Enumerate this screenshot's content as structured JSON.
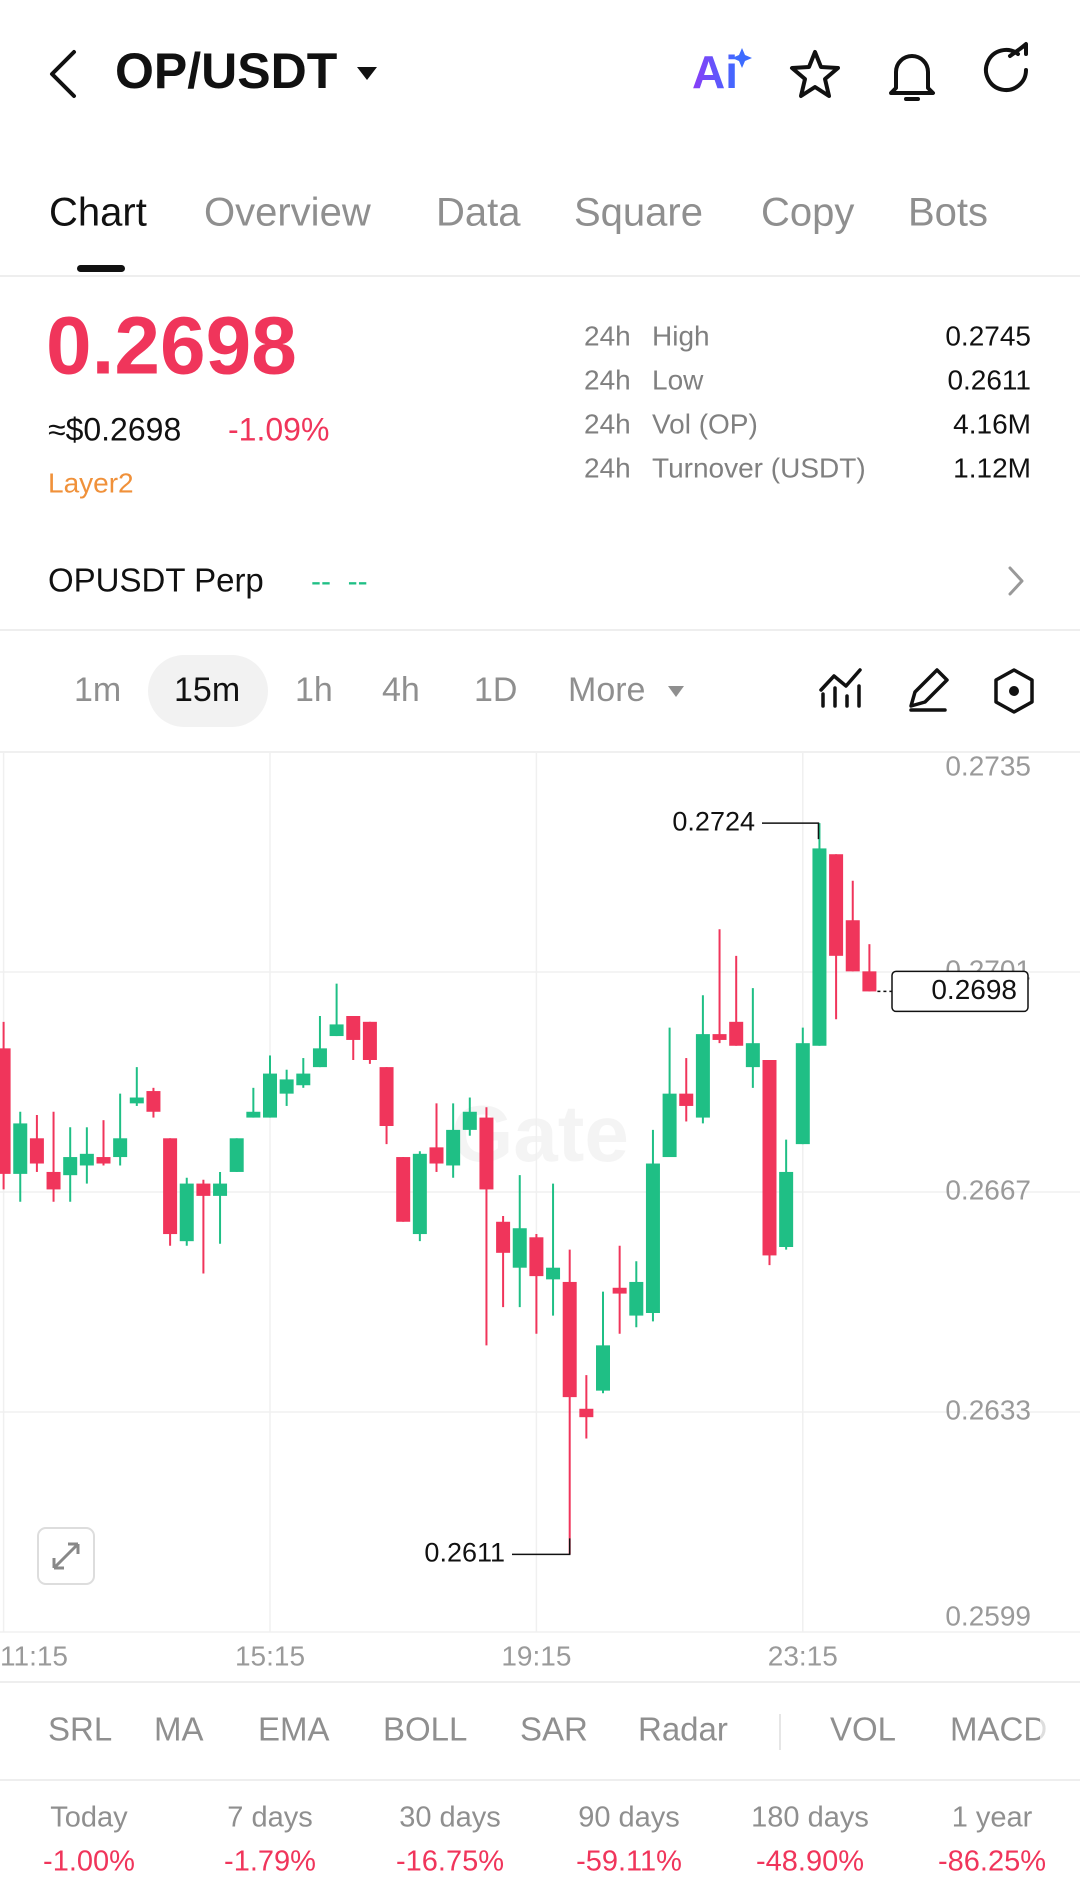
{
  "header": {
    "title": "OP/USDT",
    "ai": "Ai"
  },
  "tabs": [
    "Chart",
    "Overview",
    "Data",
    "Square",
    "Copy",
    "Bots"
  ],
  "price": {
    "last": "0.2698",
    "usd": "≈$0.2698",
    "change": "-1.09%",
    "tag": "Layer2"
  },
  "stats": [
    {
      "period": "24h",
      "label": "High",
      "value": "0.2745"
    },
    {
      "period": "24h",
      "label": "Low",
      "value": "0.2611"
    },
    {
      "period": "24h",
      "label": "Vol (OP)",
      "value": "4.16M"
    },
    {
      "period": "24h",
      "label": "Turnover (USDT)",
      "value": "1.12M"
    }
  ],
  "perp": {
    "name": "OPUSDT Perp",
    "status": "--  --"
  },
  "intervals": [
    "1m",
    "15m",
    "1h",
    "4h",
    "1D",
    "More"
  ],
  "indicators": [
    "SRL",
    "MA",
    "EMA",
    "BOLL",
    "SAR",
    "Radar",
    "VOL",
    "MACD"
  ],
  "performance": [
    {
      "period": "Today",
      "change": "-1.00%"
    },
    {
      "period": "7 days",
      "change": "-1.79%"
    },
    {
      "period": "30 days",
      "change": "-16.75%"
    },
    {
      "period": "90 days",
      "change": "-59.11%"
    },
    {
      "period": "180 days",
      "change": "-48.90%"
    },
    {
      "period": "1 year",
      "change": "-86.25%"
    }
  ],
  "chart_data": {
    "type": "candlestick",
    "watermark": "Gate",
    "categories": [
      "11:15",
      null,
      null,
      null,
      null,
      null,
      null,
      null,
      null,
      null,
      null,
      null,
      null,
      null,
      null,
      null,
      "15:15",
      null,
      null,
      null,
      null,
      null,
      null,
      null,
      null,
      null,
      null,
      null,
      null,
      null,
      null,
      null,
      "19:15",
      null,
      null,
      null,
      null,
      null,
      null,
      null,
      null,
      null,
      null,
      null,
      null,
      null,
      null,
      null,
      "23:15",
      null,
      null,
      null,
      null
    ],
    "open": [
      0.26892,
      0.26698,
      0.26753,
      0.26701,
      0.26696,
      0.26711,
      0.26724,
      0.26724,
      0.26807,
      0.26826,
      0.26753,
      0.26594,
      0.26683,
      0.26664,
      0.26701,
      0.26785,
      0.26785,
      0.26822,
      0.26835,
      0.26863,
      0.26911,
      0.26942,
      0.26933,
      0.26863,
      0.26724,
      0.26605,
      0.26739,
      0.26711,
      0.26766,
      0.26785,
      0.26624,
      0.26553,
      0.266,
      0.26535,
      0.26531,
      0.26335,
      0.26363,
      0.26522,
      0.26479,
      0.26483,
      0.26724,
      0.26822,
      0.26785,
      0.26914,
      0.26933,
      0.26863,
      0.26874,
      0.26585,
      0.26744,
      0.26896,
      0.27192,
      0.2709,
      0.27011
    ],
    "high": [
      0.26933,
      0.26794,
      0.26789,
      0.26794,
      0.2677,
      0.2677,
      0.26781,
      0.26822,
      0.26863,
      0.26831,
      0.26753,
      0.26692,
      0.26689,
      0.26701,
      0.26753,
      0.26831,
      0.26881,
      0.26859,
      0.26877,
      0.26942,
      0.26992,
      0.26942,
      0.26933,
      0.26863,
      0.26724,
      0.26733,
      0.26807,
      0.26807,
      0.26816,
      0.26801,
      0.26633,
      0.26696,
      0.26605,
      0.26683,
      0.26581,
      0.26387,
      0.26516,
      0.26587,
      0.26563,
      0.26766,
      0.26924,
      0.26877,
      0.26974,
      0.27076,
      0.27035,
      0.26985,
      0.26874,
      0.26751,
      0.26924,
      0.2724,
      0.27192,
      0.27151,
      0.27053
    ],
    "low": [
      0.26674,
      0.26655,
      0.26701,
      0.26655,
      0.26655,
      0.26683,
      0.26711,
      0.26711,
      0.26803,
      0.26785,
      0.26587,
      0.26587,
      0.26544,
      0.2659,
      0.26701,
      0.26785,
      0.26785,
      0.26803,
      0.26831,
      0.26863,
      0.26911,
      0.26874,
      0.26868,
      0.26744,
      0.26624,
      0.26594,
      0.26701,
      0.26692,
      0.26757,
      0.26433,
      0.26492,
      0.26492,
      0.26451,
      0.26479,
      0.2611,
      0.26289,
      0.26359,
      0.26451,
      0.26461,
      0.2647,
      0.26724,
      0.26779,
      0.26776,
      0.269,
      0.26896,
      0.26831,
      0.26557,
      0.26581,
      0.26744,
      0.26896,
      0.26937,
      0.27011,
      0.2698
    ],
    "close": [
      0.26698,
      0.26776,
      0.26714,
      0.26674,
      0.26724,
      0.26729,
      0.26714,
      0.26753,
      0.26816,
      0.26794,
      0.26605,
      0.26683,
      0.26664,
      0.26683,
      0.26753,
      0.26794,
      0.26853,
      0.26844,
      0.26853,
      0.26892,
      0.26929,
      0.26905,
      0.26874,
      0.26772,
      0.26624,
      0.26729,
      0.26714,
      0.26766,
      0.26794,
      0.26674,
      0.26576,
      0.26614,
      0.2654,
      0.26553,
      0.26353,
      0.26322,
      0.26433,
      0.26513,
      0.26531,
      0.26714,
      0.26822,
      0.26803,
      0.26914,
      0.26905,
      0.26896,
      0.269,
      0.26572,
      0.26701,
      0.269,
      0.27201,
      0.27035,
      0.27011,
      0.2698
    ],
    "up_color": "#1fbf85",
    "down_color": "#f0355b",
    "ylim": [
      0.2599,
      0.2735
    ],
    "yticks": [
      0.2599,
      0.2633,
      0.2667,
      0.2701,
      0.2735
    ],
    "grid": true
  }
}
